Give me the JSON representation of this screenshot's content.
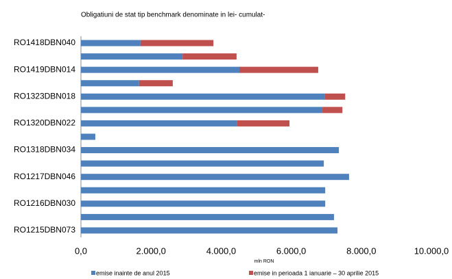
{
  "chart_data": {
    "type": "hbar-stacked",
    "title": "Obligatiuni de stat tip benchmark denominate in lei- cumulat-",
    "x_label": "mln RON",
    "categories": [
      "RO1418DBN040",
      null,
      "RO1419DBN014",
      null,
      "RO1323DBN018",
      null,
      "RO1320DBN022",
      null,
      "RO1318DBN034",
      null,
      "RO1217DBN046",
      null,
      "RO1216DBN030",
      null,
      "RO1215DBN073"
    ],
    "series": [
      {
        "name": "emise inainte de anul 2015",
        "color": "#4f81bd",
        "values": [
          1700,
          2900,
          4520,
          1660,
          6950,
          6890,
          4460,
          410,
          7360,
          6930,
          7650,
          6970,
          6970,
          7220,
          7320
        ]
      },
      {
        "name": "emise in perioada 1 ianuarie – 30 aprilie 2015",
        "color": "#c0504d",
        "values": [
          2080,
          1540,
          2250,
          960,
          590,
          570,
          1490,
          0,
          0,
          0,
          0,
          0,
          0,
          0,
          0
        ]
      }
    ],
    "xlim": [
      0,
      10000
    ],
    "xticks": [
      {
        "value": 0,
        "label": "0,0"
      },
      {
        "value": 2000,
        "label": "2.000,0"
      },
      {
        "value": 4000,
        "label": "4.000,0"
      },
      {
        "value": 6000,
        "label": "6.000,0"
      },
      {
        "value": 8000,
        "label": "8.000,0"
      },
      {
        "value": 10000,
        "label": "10.000,0"
      }
    ],
    "legend": "bottom"
  }
}
